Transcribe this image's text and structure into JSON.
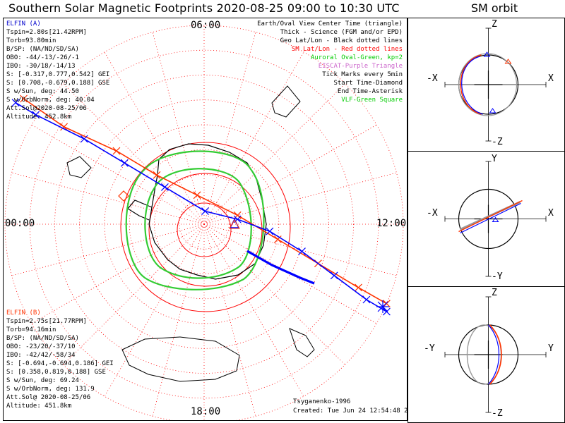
{
  "title": "Southern Solar Magnetic Footprints 2020-08-25 09:00 to 10:30 UTC",
  "sm_title": "SM orbit",
  "map": {
    "labels": {
      "top": "06:00",
      "left": "00:00",
      "right": "12:00",
      "bottom": "18:00"
    },
    "legend": [
      {
        "text": "Earth/Oval View Center Time (triangle)",
        "color": "#000000"
      },
      {
        "text": "Thick - Science (FGM and/or EPD)",
        "color": "#000000"
      },
      {
        "text": "Geo Lat/Lon - Black dotted lines",
        "color": "#000000"
      },
      {
        "text": "SM Lat/Lon - Red dotted lines",
        "color": "#ff0000"
      },
      {
        "text": "Auroral Oval-Green, kp=2",
        "color": "#00cc00"
      },
      {
        "text": "EISCAT-Purple Triangle",
        "color": "#cc66cc"
      },
      {
        "text": "Tick Marks every 5min",
        "color": "#000000"
      },
      {
        "text": "Start Time-Diamond",
        "color": "#000000"
      },
      {
        "text": "End Time-Asterisk",
        "color": "#000000"
      },
      {
        "text": "VLF-Green Square",
        "color": "#00cc00"
      }
    ],
    "elfin_a": {
      "color": "#0000cc",
      "lines": [
        "ELFIN (A)",
        "Tspin=2.80s[21.42RPM]",
        "Torb=93.80min",
        "B/SP: (NA/ND/SD/SA)",
        "OBO: -44/-13/-26/-1",
        "IBO: -30/18/-14/13",
        "S: [-0.317,0.777,0.542] GEI",
        "S: [0.708,-0.679,0.188] GSE",
        "S w/Sun, deg: 44.50",
        "S w/OrbNorm, deg: 40.04",
        "Att.Sol@2020-08-25/06",
        "Altitude: 452.8km"
      ]
    },
    "elfin_b": {
      "color": "#ff3300",
      "lines": [
        "ELFIN (B)",
        "Tspin=2.75s[21.77RPM]",
        "Torb=94.16min",
        "B/SP: (NA/ND/SD/SA)",
        "OBO: -23/20/-37/10",
        "IBO: -42/42/-58/34",
        "S: [-0.694,-0.694,0.186] GEI",
        "S: [0.358,0.819,0.188] GSE",
        "S w/Sun, deg: 69.24",
        "S w/OrbNorm, deg: 131.9",
        "Att.Sol@ 2020-08-25/06",
        "Altitude: 451.8km"
      ]
    },
    "credit": "Tsyganenko-1996",
    "created": "Created: Tue Jun 24 12:54:48 2023"
  },
  "sm_panels": [
    {
      "id": "xz",
      "top": "Z",
      "bottom": "-Z",
      "left": "-X",
      "right": "X"
    },
    {
      "id": "xy",
      "top": "Y",
      "bottom": "-Y",
      "left": "-X",
      "right": "X"
    },
    {
      "id": "yz",
      "top": "Z",
      "bottom": "-Z",
      "left": "-Y",
      "right": "Y"
    }
  ],
  "colors": {
    "elfin_a": "#0000ff",
    "elfin_b": "#ff3300",
    "oval": "#33cc33",
    "grid": "#ff0000"
  },
  "chart_data": {
    "type": "scatter",
    "title": "Southern Solar Magnetic Footprints 2020-08-25 09:00 to 10:30 UTC",
    "projection": "polar (south), SM magnetic local time",
    "series": [
      {
        "name": "ELFIN (A)",
        "x": [
          0.03,
          0.08,
          0.2,
          0.3,
          0.4,
          0.5,
          0.58,
          0.66,
          0.74,
          0.82,
          0.9,
          0.95
        ],
        "y": [
          0.79,
          0.76,
          0.7,
          0.64,
          0.58,
          0.52,
          0.5,
          0.47,
          0.42,
          0.36,
          0.3,
          0.27
        ]
      },
      {
        "name": "ELFIN (B)",
        "x": [
          0.05,
          0.15,
          0.28,
          0.38,
          0.48,
          0.58,
          0.68,
          0.78,
          0.88,
          0.95
        ],
        "y": [
          0.8,
          0.73,
          0.67,
          0.61,
          0.56,
          0.51,
          0.45,
          0.39,
          0.33,
          0.29
        ]
      }
    ]
  }
}
